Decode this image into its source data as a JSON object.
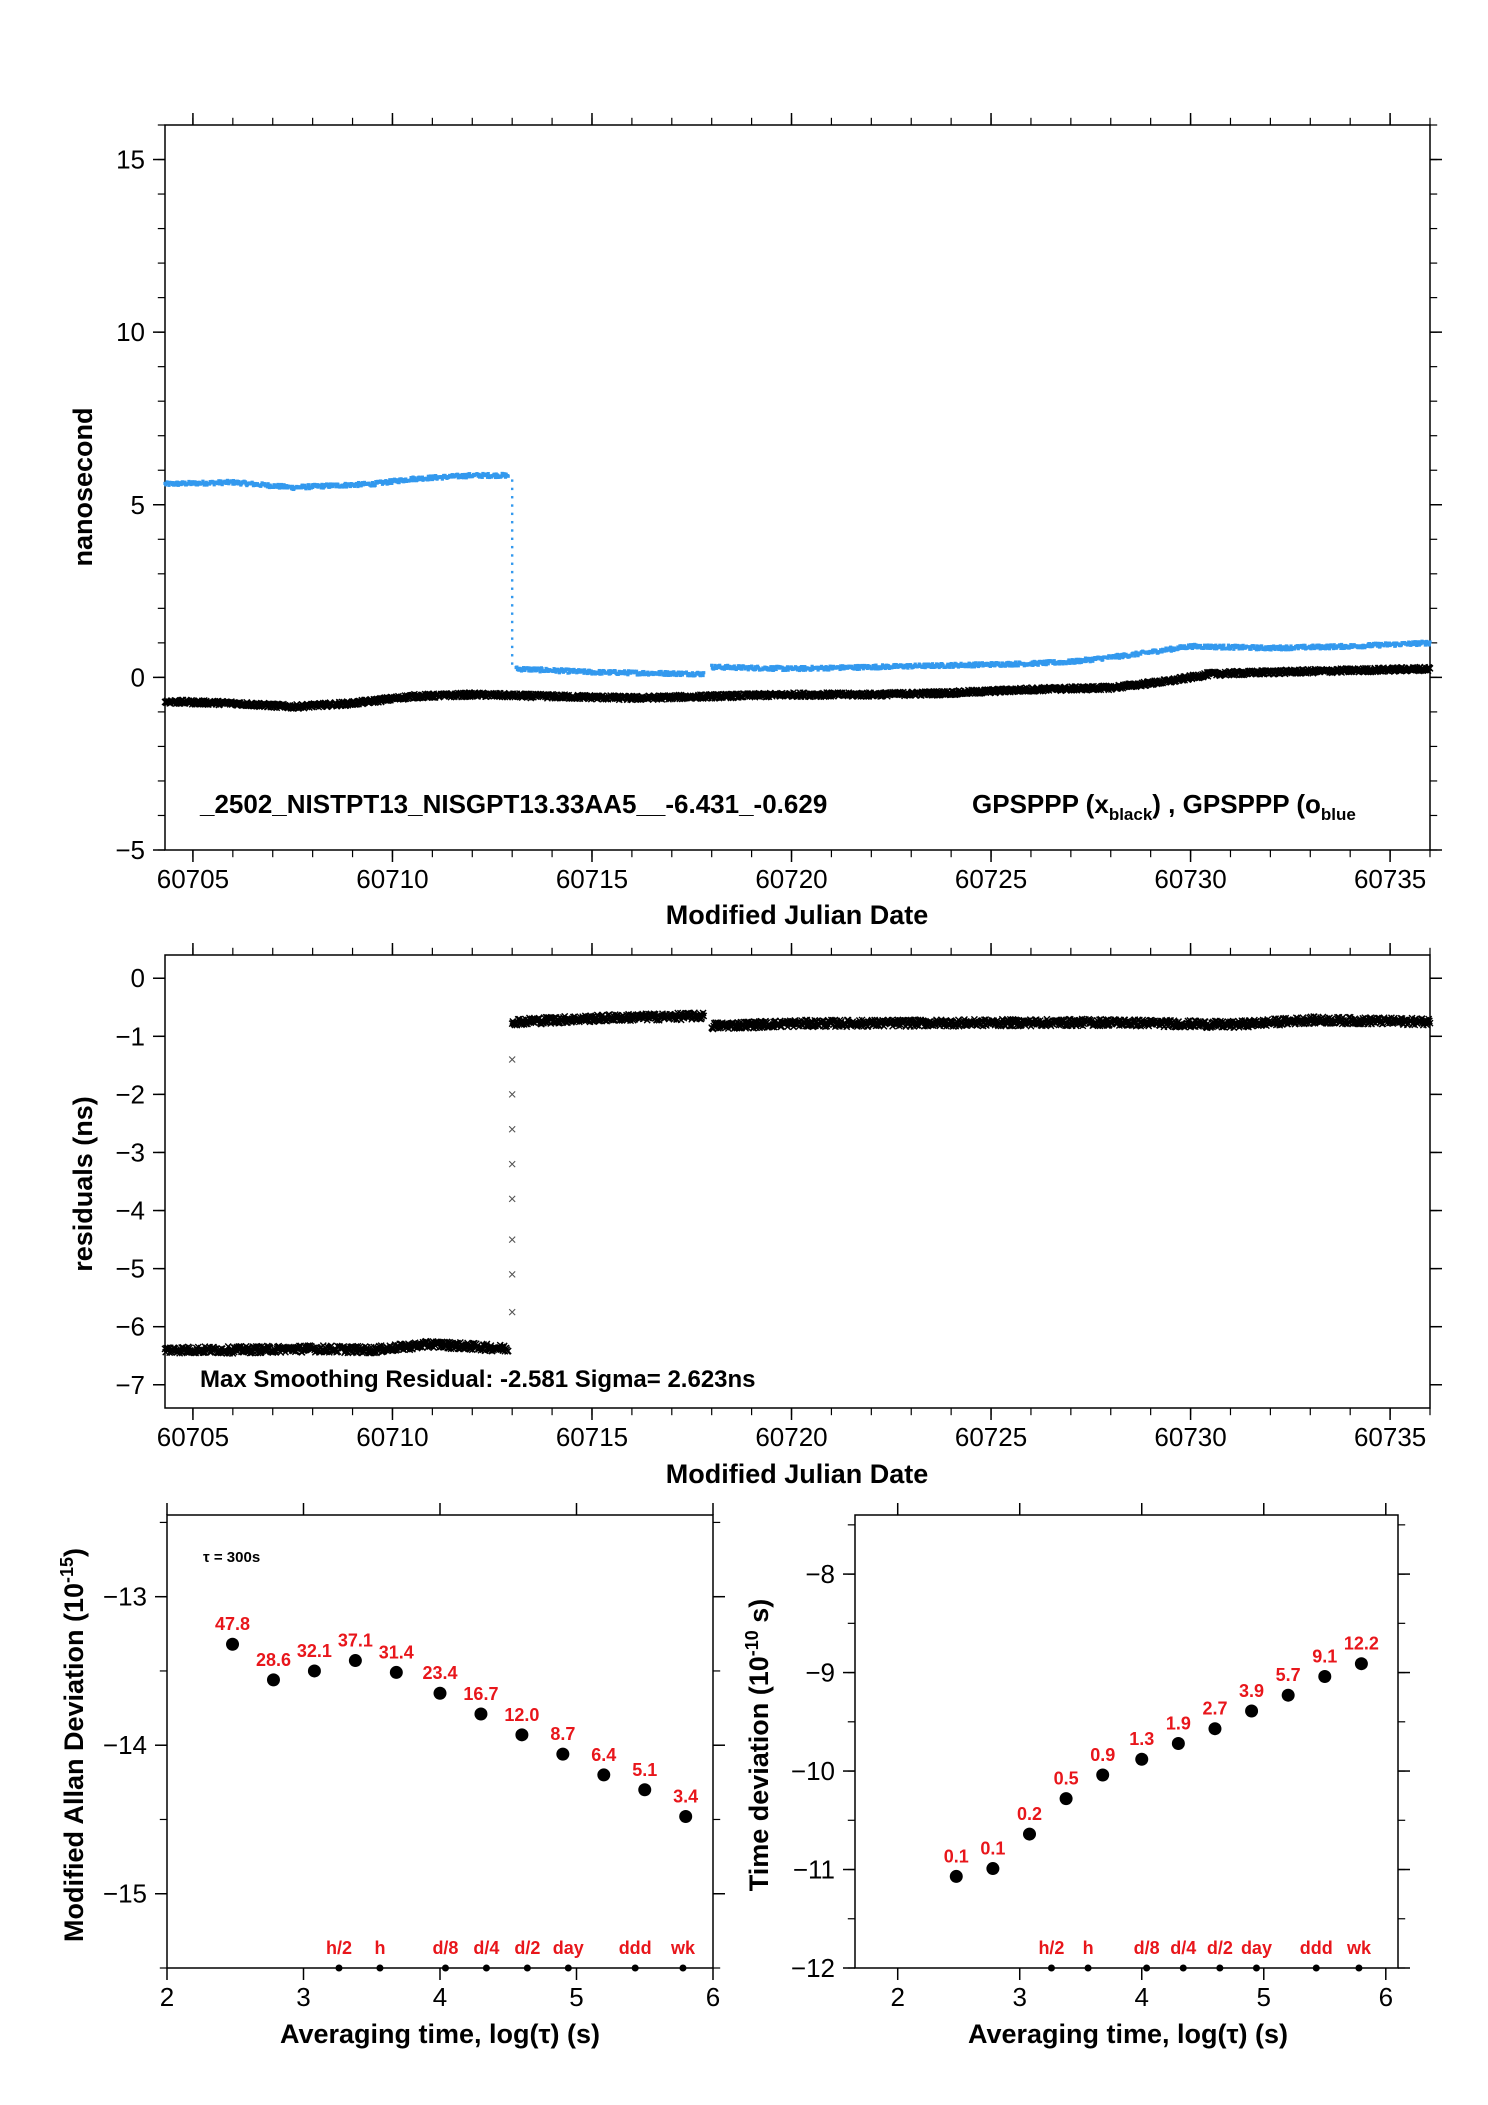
{
  "chart_data": [
    {
      "type": "scatter",
      "ylabel": "nanosecond",
      "xlabel": "Modified Julian Date",
      "xlim": [
        60704.3,
        60736.0
      ],
      "ylim": [
        -5,
        16
      ],
      "xticks": [
        60705,
        60710,
        60715,
        60720,
        60725,
        60730,
        60735
      ],
      "yticks": [
        -5,
        0,
        5,
        10,
        15
      ],
      "annotation": {
        "id": "_2502_NISTPT13_NISGPT13.33AA5__-6.431_-0.629",
        "legend_a": "GPSPPP (x",
        "legend_a_sub": "black",
        "legend_mid": ") ,  GPSPPP (o",
        "legend_b_sub": "blue"
      },
      "series": [
        {
          "color": "#3399ee",
          "marker": "dot",
          "segments": [
            {
              "x": [
                60704.3,
                60706.0,
                60707.5,
                60708.4,
                60709.5,
                60710.5,
                60712.0,
                60712.9
              ],
              "y": [
                5.6,
                5.65,
                5.5,
                5.55,
                5.6,
                5.75,
                5.85,
                5.85
              ]
            },
            {
              "x": [
                60713.0,
                60713.0
              ],
              "y": [
                5.7,
                0.4
              ]
            },
            {
              "x": [
                60713.1,
                60715.0,
                60717.8
              ],
              "y": [
                0.25,
                0.15,
                0.1
              ]
            },
            {
              "x": [
                60718.0,
                60720.0,
                60722.0,
                60724.0,
                60726.0,
                60727.0,
                60728.5,
                60730.0,
                60732.0,
                60734.0,
                60736.0
              ],
              "y": [
                0.3,
                0.25,
                0.3,
                0.35,
                0.4,
                0.45,
                0.65,
                0.9,
                0.85,
                0.9,
                1.0
              ]
            }
          ]
        },
        {
          "color": "#000000",
          "marker": "x",
          "segments": [
            {
              "x": [
                60704.3,
                60706.0,
                60707.5,
                60709.0,
                60710.5,
                60712.0,
                60714.0,
                60716.0,
                60718.0,
                60720.0,
                60722.0,
                60724.0,
                60726.0,
                60728.0,
                60729.5,
                60730.5,
                60732.0,
                60734.0,
                60736.0
              ],
              "y": [
                -0.7,
                -0.75,
                -0.85,
                -0.75,
                -0.55,
                -0.5,
                -0.55,
                -0.6,
                -0.55,
                -0.5,
                -0.5,
                -0.45,
                -0.35,
                -0.3,
                -0.1,
                0.1,
                0.15,
                0.2,
                0.25
              ]
            }
          ]
        }
      ]
    },
    {
      "type": "scatter",
      "ylabel": "residuals (ns)",
      "xlabel": "Modified Julian Date",
      "xlim": [
        60704.3,
        60736.0
      ],
      "ylim": [
        -7.4,
        0.4
      ],
      "xticks": [
        60705,
        60710,
        60715,
        60720,
        60725,
        60730,
        60735
      ],
      "yticks": [
        0,
        -1,
        -2,
        -3,
        -4,
        -5,
        -6,
        -7
      ],
      "annotation": "Max Smoothing Residual: -2.581  Sigma= 2.623ns",
      "series": [
        {
          "color": "#000000",
          "marker": "x",
          "segments": [
            {
              "x": [
                60704.3,
                60706.0,
                60708.0,
                60709.5,
                60711.0,
                60712.9
              ],
              "y": [
                -6.4,
                -6.4,
                -6.38,
                -6.4,
                -6.3,
                -6.38
              ]
            },
            {
              "x": [
                60713.0,
                60715.5,
                60717.8
              ],
              "y": [
                -0.75,
                -0.68,
                -0.65
              ]
            },
            {
              "x": [
                60718.0,
                60720.0,
                60724.0,
                60728.0,
                60731.0,
                60733.0,
                60736.0
              ],
              "y": [
                -0.82,
                -0.78,
                -0.77,
                -0.76,
                -0.8,
                -0.72,
                -0.75
              ]
            }
          ],
          "outliers": {
            "x": [
              60713,
              60713,
              60713,
              60713,
              60713,
              60713,
              60713,
              60713
            ],
            "y": [
              -1.4,
              -2.0,
              -2.6,
              -3.2,
              -3.8,
              -4.5,
              -5.1,
              -5.75
            ]
          }
        }
      ]
    },
    {
      "type": "scatter",
      "ylabel": "Modified Allan Deviation (10",
      "ylabel_sup": "-15",
      "ylabel_tail": ")",
      "xlabel": "Averaging time, log(τ) (s)",
      "xlim": [
        2,
        6
      ],
      "ylim": [
        -15.5,
        -12.45
      ],
      "xticks": [
        2,
        3,
        4,
        5,
        6
      ],
      "yticks": [
        -13,
        -14,
        -15
      ],
      "tau_note": "τ = 300s",
      "x": [
        2.48,
        2.78,
        3.08,
        3.38,
        3.68,
        4.0,
        4.3,
        4.6,
        4.9,
        5.2,
        5.5,
        5.8
      ],
      "y": [
        -13.32,
        -13.56,
        -13.5,
        -13.43,
        -13.51,
        -13.65,
        -13.79,
        -13.93,
        -14.06,
        -14.2,
        -14.3,
        -14.48
      ],
      "point_labels": [
        "47.8",
        "28.6",
        "32.1",
        "37.1",
        "31.4",
        "23.4",
        "16.7",
        "12.0",
        "8.7",
        "6.4",
        "5.1",
        "3.4"
      ],
      "markers": {
        "labels": [
          "h/2",
          "h",
          "d/8",
          "d/4",
          "d/2",
          "day",
          "ddd",
          "wk"
        ],
        "x": [
          3.26,
          3.56,
          4.04,
          4.34,
          4.64,
          4.94,
          5.43,
          5.78
        ]
      }
    },
    {
      "type": "scatter",
      "ylabel": "Time deviation (10",
      "ylabel_sup": "-10",
      "ylabel_tail": " s)",
      "xlabel": "Averaging time, log(τ) (s)",
      "xlim": [
        1.65,
        6.1
      ],
      "ylim": [
        -12,
        -7.4
      ],
      "xticks": [
        2,
        3,
        4,
        5,
        6
      ],
      "yticks": [
        -8,
        -9,
        -10,
        -11,
        -12
      ],
      "x": [
        2.48,
        2.78,
        3.08,
        3.38,
        3.68,
        4.0,
        4.3,
        4.6,
        4.9,
        5.2,
        5.5,
        5.8
      ],
      "y": [
        -11.07,
        -10.99,
        -10.64,
        -10.28,
        -10.04,
        -9.88,
        -9.72,
        -9.57,
        -9.39,
        -9.23,
        -9.04,
        -8.91
      ],
      "point_labels": [
        "0.1",
        "0.1",
        "0.2",
        "0.5",
        "0.9",
        "1.3",
        "1.9",
        "2.7",
        "3.9",
        "5.7",
        "9.1",
        "12.2"
      ],
      "markers": {
        "labels": [
          "h/2",
          "h",
          "d/8",
          "d/4",
          "d/2",
          "day",
          "ddd",
          "wk"
        ],
        "x": [
          3.26,
          3.56,
          4.04,
          4.34,
          4.64,
          4.94,
          5.43,
          5.78
        ]
      }
    }
  ]
}
